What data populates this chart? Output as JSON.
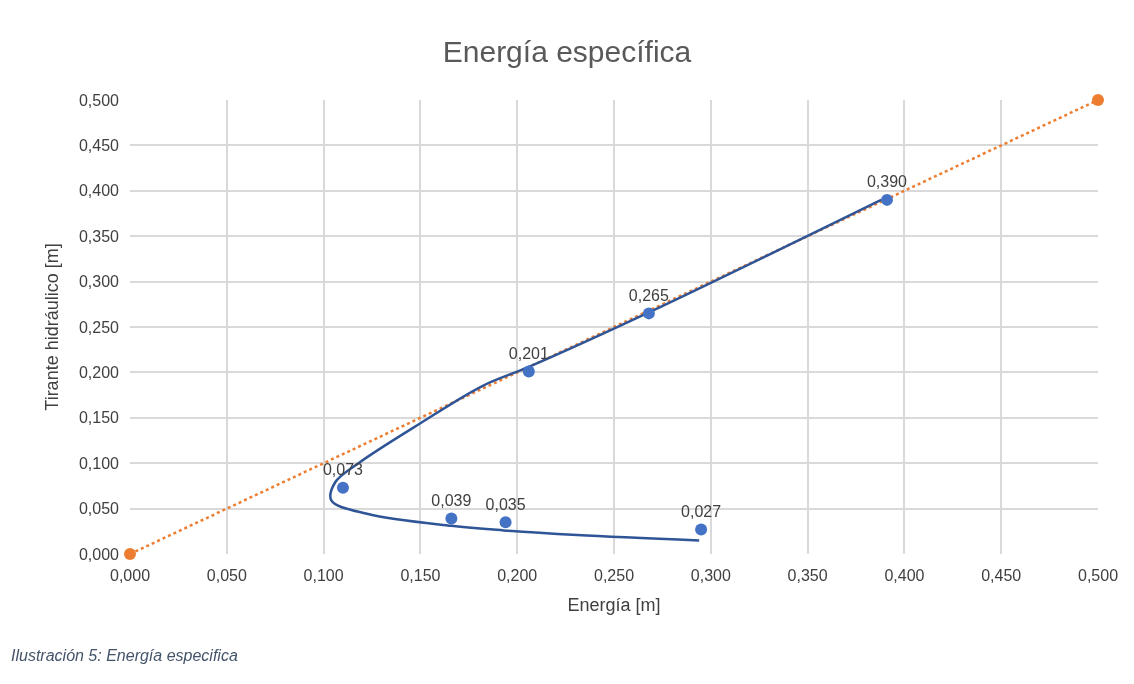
{
  "chart_data": {
    "type": "scatter",
    "title": "Energía específica",
    "xlabel": "Energía [m]",
    "ylabel": "Tirante hidráulico [m]",
    "xlim": [
      0,
      0.5
    ],
    "ylim": [
      0,
      0.5
    ],
    "xticks": [
      {
        "value": 0,
        "label": "0,000"
      },
      {
        "value": 0.05,
        "label": "0,050"
      },
      {
        "value": 0.1,
        "label": "0,100"
      },
      {
        "value": 0.15,
        "label": "0,150"
      },
      {
        "value": 0.2,
        "label": "0,200"
      },
      {
        "value": 0.25,
        "label": "0,250"
      },
      {
        "value": 0.3,
        "label": "0,300"
      },
      {
        "value": 0.35,
        "label": "0,350"
      },
      {
        "value": 0.4,
        "label": "0,400"
      },
      {
        "value": 0.45,
        "label": "0,450"
      },
      {
        "value": 0.5,
        "label": "0,500"
      }
    ],
    "yticks": [
      {
        "value": 0,
        "label": "0,000"
      },
      {
        "value": 0.05,
        "label": "0,050"
      },
      {
        "value": 0.1,
        "label": "0,100"
      },
      {
        "value": 0.15,
        "label": "0,150"
      },
      {
        "value": 0.2,
        "label": "0,200"
      },
      {
        "value": 0.25,
        "label": "0,250"
      },
      {
        "value": 0.3,
        "label": "0,300"
      },
      {
        "value": 0.35,
        "label": "0,350"
      },
      {
        "value": 0.4,
        "label": "0,400"
      },
      {
        "value": 0.45,
        "label": "0,450"
      },
      {
        "value": 0.5,
        "label": "0,500"
      }
    ],
    "grid": true,
    "series": [
      {
        "type": "line",
        "color": "#ed7d31",
        "line_style": "dotted",
        "marker": "circle",
        "x": [
          0,
          0.5
        ],
        "values": [
          0,
          0.5
        ]
      },
      {
        "type": "line",
        "color": "#2f5597",
        "line_style": "solid",
        "marker": "none",
        "x": [
          0.294,
          0.231,
          0.193,
          0.166,
          0.123,
          0.104,
          0.106,
          0.118,
          0.15,
          0.182,
          0.206,
          0.268,
          0.388
        ],
        "values": [
          0.015,
          0.021,
          0.026,
          0.031,
          0.044,
          0.059,
          0.079,
          0.1,
          0.144,
          0.185,
          0.206,
          0.266,
          0.39
        ]
      },
      {
        "color": "#4472c4",
        "marker": "circle",
        "x": [
          0.11,
          0.166,
          0.194,
          0.295,
          0.206,
          0.268,
          0.391
        ],
        "values": [
          0.073,
          0.039,
          0.035,
          0.027,
          0.201,
          0.265,
          0.39
        ],
        "value_labels": [
          "0,073",
          "0,039",
          "0,035",
          "0,027",
          "0,201",
          "0,265",
          "0,390"
        ]
      }
    ],
    "annotations": [
      "Ilustración 5: Energía especifica"
    ]
  }
}
